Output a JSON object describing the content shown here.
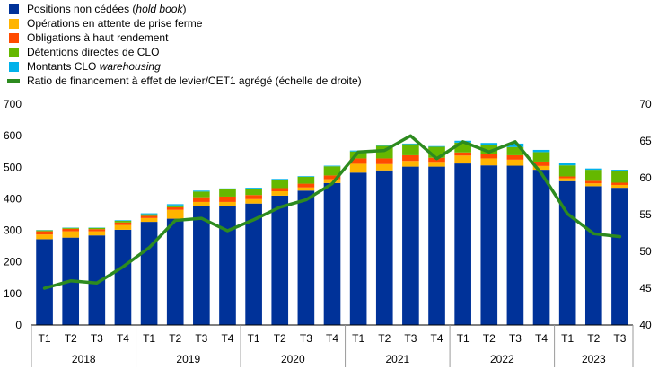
{
  "chart_data": {
    "type": "bar",
    "stacked": true,
    "legend": [
      {
        "key": "hold",
        "parts": [
          "Positions non cédées (",
          "hold book",
          ")"
        ],
        "italic_index": 1,
        "color": "#003299",
        "kind": "bar"
      },
      {
        "key": "pending",
        "parts": [
          "Opérations en attente de prise ferme"
        ],
        "color": "#FFB400",
        "kind": "bar"
      },
      {
        "key": "hy",
        "parts": [
          "Obligations à haut rendement"
        ],
        "color": "#FF4B00",
        "kind": "bar"
      },
      {
        "key": "clo_direct",
        "parts": [
          "Détentions directes de CLO"
        ],
        "color": "#65B800",
        "kind": "bar"
      },
      {
        "key": "clo_wh",
        "parts": [
          "Montants CLO ",
          "warehousing"
        ],
        "italic_index": 1,
        "color": "#00B1EA",
        "kind": "bar"
      },
      {
        "key": "ratio",
        "parts": [
          "Ratio de financement à effet de levier/CET1 agrégé (échelle de droite)"
        ],
        "color": "#2D8B1F",
        "kind": "line"
      }
    ],
    "quarters": [
      "T1",
      "T2",
      "T3",
      "T4",
      "T1",
      "T2",
      "T3",
      "T4",
      "T1",
      "T2",
      "T3",
      "T4",
      "T1",
      "T2",
      "T3",
      "T4",
      "T1",
      "T2",
      "T3",
      "T4",
      "T1",
      "T2",
      "T3"
    ],
    "years": [
      {
        "label": "2018",
        "count": 4
      },
      {
        "label": "2019",
        "count": 4
      },
      {
        "label": "2020",
        "count": 4
      },
      {
        "label": "2021",
        "count": 4
      },
      {
        "label": "2022",
        "count": 4
      },
      {
        "label": "2023",
        "count": 3
      }
    ],
    "series": [
      {
        "key": "hold",
        "values": [
          272,
          277,
          284,
          302,
          327,
          337,
          376,
          376,
          385,
          410,
          426,
          450,
          483,
          490,
          502,
          502,
          512,
          506,
          505,
          492,
          456,
          440,
          435
        ]
      },
      {
        "key": "pending",
        "values": [
          15,
          20,
          13,
          15,
          12,
          28,
          14,
          14,
          14,
          14,
          10,
          12,
          28,
          20,
          18,
          15,
          25,
          22,
          19,
          12,
          9,
          9,
          9
        ]
      },
      {
        "key": "hy",
        "values": [
          10,
          8,
          7,
          8,
          7,
          8,
          15,
          17,
          13,
          10,
          12,
          12,
          17,
          18,
          18,
          13,
          10,
          14,
          14,
          14,
          6,
          8,
          7
        ]
      },
      {
        "key": "clo_direct",
        "values": [
          3,
          3,
          4,
          5,
          5,
          6,
          18,
          23,
          20,
          27,
          22,
          29,
          22,
          40,
          35,
          35,
          31,
          28,
          26,
          30,
          35,
          35,
          36
        ]
      },
      {
        "key": "clo_wh",
        "values": [
          1,
          1,
          1,
          2,
          3,
          4,
          3,
          3,
          3,
          2,
          2,
          2,
          3,
          3,
          2,
          2,
          6,
          7,
          11,
          7,
          7,
          4,
          5
        ]
      }
    ],
    "line": {
      "key": "ratio",
      "values": [
        45.0,
        46.0,
        45.7,
        47.9,
        50.5,
        54.2,
        54.5,
        52.8,
        54.3,
        56.0,
        57.0,
        59.2,
        63.5,
        63.7,
        65.7,
        62.6,
        64.9,
        63.5,
        64.9,
        60.6,
        55.1,
        52.4,
        52.0
      ]
    },
    "left_axis": {
      "min": 0,
      "max": 700,
      "ticks": [
        0,
        100,
        200,
        300,
        400,
        500,
        600,
        700
      ]
    },
    "right_axis": {
      "min": 40,
      "max": 70,
      "ticks": [
        40,
        45,
        50,
        55,
        60,
        65,
        70
      ]
    },
    "title": "",
    "xlabel": "",
    "ylabel": "",
    "grid": false,
    "legend_placement": "top-left"
  }
}
